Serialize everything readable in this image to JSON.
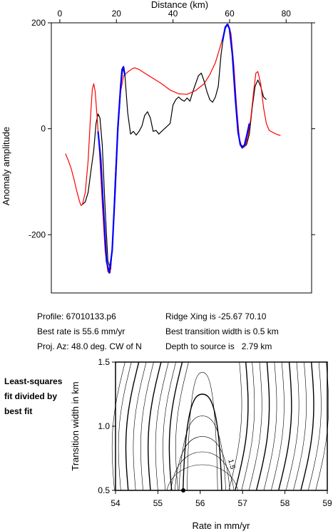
{
  "info": {
    "profile": "Profile: 67010133.p6",
    "best_rate": "Best rate is 55.6 mm/yr",
    "proj_az": "Proj. Az: 48.0 deg. CW of N",
    "ridge_xing": "Ridge Xing is -25.67 70.10",
    "best_width": "Best transition width is 0.5 km",
    "depth": "Depth to source is   2.79 km"
  },
  "side_note": [
    "Least-squares",
    "fit divided by",
    "best fit"
  ],
  "chart_data": [
    {
      "type": "line",
      "xlabel": "Distance (km)",
      "ylabel": "Anomaly amplitude",
      "xlim": [
        -3,
        89
      ],
      "ylim": [
        -310,
        200
      ],
      "xticks": [
        0,
        20,
        40,
        60,
        80
      ],
      "yticks": [
        -200,
        0,
        200
      ],
      "x_axis_position": "top",
      "grid": false,
      "series": [
        {
          "color": "#000000",
          "points": [
            [
              8,
              -143
            ],
            [
              9,
              -138
            ],
            [
              10,
              -120
            ],
            [
              11,
              -80
            ],
            [
              12,
              -40
            ],
            [
              12.8,
              10
            ],
            [
              13.5,
              28
            ],
            [
              14.2,
              20
            ],
            [
              15,
              -30
            ],
            [
              16,
              -150
            ],
            [
              17,
              -250
            ],
            [
              18,
              -265
            ],
            [
              18.8,
              -200
            ],
            [
              19.5,
              -100
            ],
            [
              20.5,
              0
            ],
            [
              21.5,
              80
            ],
            [
              22.3,
              115
            ],
            [
              23,
              100
            ],
            [
              24,
              30
            ],
            [
              25,
              -10
            ],
            [
              26,
              -5
            ],
            [
              27,
              -12
            ],
            [
              28,
              -5
            ],
            [
              29,
              5
            ],
            [
              30,
              25
            ],
            [
              31,
              32
            ],
            [
              32,
              20
            ],
            [
              33,
              -5
            ],
            [
              34,
              -3
            ],
            [
              35,
              -10
            ],
            [
              36,
              -5
            ],
            [
              37,
              0
            ],
            [
              38,
              5
            ],
            [
              39,
              10
            ],
            [
              40,
              45
            ],
            [
              41,
              55
            ],
            [
              42,
              60
            ],
            [
              43,
              55
            ],
            [
              44,
              52
            ],
            [
              45,
              58
            ],
            [
              46,
              52
            ],
            [
              47,
              70
            ],
            [
              48,
              85
            ],
            [
              49,
              100
            ],
            [
              50,
              105
            ],
            [
              51,
              90
            ],
            [
              52,
              70
            ],
            [
              53,
              55
            ],
            [
              54,
              50
            ],
            [
              55,
              60
            ],
            [
              56,
              80
            ],
            [
              57,
              140
            ],
            [
              58,
              180
            ],
            [
              59,
              197
            ],
            [
              60,
              190
            ],
            [
              61,
              140
            ],
            [
              62,
              60
            ],
            [
              63,
              -10
            ],
            [
              64,
              -30
            ],
            [
              65,
              -35
            ],
            [
              66,
              -30
            ],
            [
              67,
              -10
            ],
            [
              68,
              40
            ],
            [
              69,
              80
            ],
            [
              70,
              92
            ],
            [
              71,
              80
            ],
            [
              72,
              60
            ],
            [
              73,
              55
            ]
          ]
        },
        {
          "color": "#ff0000",
          "points": [
            [
              2,
              -47
            ],
            [
              3,
              -60
            ],
            [
              4,
              -75
            ],
            [
              5,
              -95
            ],
            [
              6,
              -118
            ],
            [
              7,
              -138
            ],
            [
              7.5,
              -145
            ],
            [
              8,
              -143
            ],
            [
              9,
              -120
            ],
            [
              10,
              -60
            ],
            [
              10.8,
              20
            ],
            [
              11.5,
              75
            ],
            [
              12,
              85
            ],
            [
              12.5,
              70
            ],
            [
              13.2,
              20
            ],
            [
              14,
              -40
            ],
            [
              15,
              -140
            ],
            [
              16,
              -230
            ],
            [
              17,
              -270
            ],
            [
              17.8,
              -272
            ],
            [
              18.5,
              -230
            ],
            [
              19.5,
              -120
            ],
            [
              20.5,
              -10
            ],
            [
              21.5,
              70
            ],
            [
              22.5,
              100
            ],
            [
              24,
              107
            ],
            [
              25.5,
              113
            ],
            [
              26.5,
              115
            ],
            [
              28,
              112
            ],
            [
              30,
              105
            ],
            [
              33,
              95
            ],
            [
              36,
              85
            ],
            [
              39,
              73
            ],
            [
              42,
              66
            ],
            [
              45,
              65
            ],
            [
              48,
              72
            ],
            [
              51,
              85
            ],
            [
              53,
              102
            ],
            [
              55,
              125
            ],
            [
              57,
              160
            ],
            [
              58.5,
              190
            ],
            [
              59.5,
              197
            ],
            [
              60.5,
              180
            ],
            [
              61.5,
              120
            ],
            [
              62.5,
              40
            ],
            [
              63.5,
              -20
            ],
            [
              64.5,
              -36
            ],
            [
              65.5,
              -32
            ],
            [
              66.5,
              -15
            ],
            [
              67.5,
              20
            ],
            [
              68.5,
              70
            ],
            [
              69.3,
              105
            ],
            [
              70,
              108
            ],
            [
              71,
              85
            ],
            [
              72,
              40
            ],
            [
              73,
              10
            ],
            [
              74,
              -3
            ],
            [
              76,
              -9
            ],
            [
              78,
              -13
            ]
          ]
        },
        {
          "color": "#0000ff",
          "points": [
            [
              13.5,
              -5
            ],
            [
              14.5,
              -60
            ],
            [
              15.5,
              -160
            ],
            [
              16.5,
              -250
            ],
            [
              17.5,
              -272
            ],
            [
              18.5,
              -230
            ],
            [
              19.5,
              -120
            ],
            [
              20.5,
              0
            ],
            [
              21.5,
              80
            ],
            [
              22,
              112
            ],
            [
              22.5,
              117
            ],
            [
              23,
              100
            ]
          ]
        },
        {
          "color": "#0000ff",
          "points": [
            [
              57.5,
              165
            ],
            [
              58.5,
              192
            ],
            [
              59.3,
              197
            ],
            [
              60,
              188
            ],
            [
              61,
              140
            ],
            [
              62,
              60
            ],
            [
              63,
              -5
            ],
            [
              63.8,
              -30
            ],
            [
              64.5,
              -36
            ],
            [
              65.3,
              -30
            ],
            [
              66.2,
              -10
            ],
            [
              67,
              10
            ]
          ]
        }
      ]
    },
    {
      "type": "contour",
      "xlabel": "Rate in mm/yr",
      "ylabel": "Transition width in km",
      "xlim": [
        54,
        59
      ],
      "ylim": [
        0.5,
        1.5
      ],
      "xticks": [
        54,
        55,
        56,
        57,
        58,
        59
      ],
      "yticks": [
        0.5,
        1.0,
        1.5
      ],
      "contour_labels": [
        "1.5"
      ],
      "best_fit": {
        "x": 55.6,
        "y": 0.5
      }
    }
  ]
}
